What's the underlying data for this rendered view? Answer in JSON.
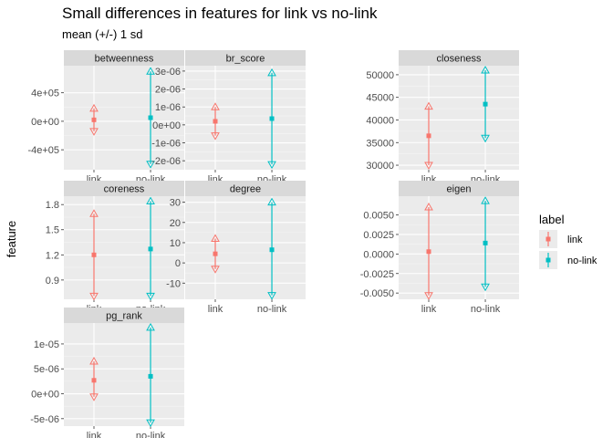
{
  "title": "Small differences in features for link vs no-link",
  "subtitle": "mean (+/-) 1 sd",
  "colors": {
    "panel_bg": "#ebebeb",
    "strip_bg": "#d9d9d9",
    "grid_major": "#ffffff",
    "link": "#F8766D",
    "no-link": "#00BFC4"
  },
  "chart_data": {
    "type": "errorbar",
    "facet_by": "feature",
    "x_categories": [
      "link",
      "no-link"
    ],
    "ylabel": "feature",
    "legend": {
      "title": "label",
      "entries": [
        "link",
        "no-link"
      ],
      "position": "right"
    },
    "grid": true,
    "panels": [
      {
        "name": "betweenness",
        "ylim": [
          -680000,
          780000
        ],
        "ticks": [
          -400000,
          0,
          400000
        ],
        "tick_labels": [
          "-4e+05",
          "0e+00",
          "4e+05"
        ],
        "series": [
          {
            "label": "link",
            "mean": 20000,
            "lower": -140000,
            "upper": 180000
          },
          {
            "label": "no-link",
            "mean": 50000,
            "upper": 700000,
            "lower": -600000
          }
        ]
      },
      {
        "name": "br_score",
        "ylim": [
          -2.5e-06,
          3.3e-06
        ],
        "ticks": [
          -2e-06,
          -1e-06,
          0,
          1e-06,
          2e-06,
          3e-06
        ],
        "tick_labels": [
          "-2e-06",
          "-1e-06",
          "0e+00",
          "1e-06",
          "2e-06",
          "3e-06"
        ],
        "series": [
          {
            "label": "link",
            "mean": 2e-07,
            "lower": -6e-07,
            "upper": 1e-06
          },
          {
            "label": "no-link",
            "mean": 3.5e-07,
            "upper": 2.9e-06,
            "lower": -2.2e-06
          }
        ]
      },
      {
        "name": "closeness",
        "ylim": [
          29000,
          52000
        ],
        "ticks": [
          30000,
          35000,
          40000,
          45000,
          50000
        ],
        "tick_labels": [
          "30000",
          "35000",
          "40000",
          "45000",
          "50000"
        ],
        "series": [
          {
            "label": "link",
            "mean": 36500,
            "lower": 30000,
            "upper": 43000
          },
          {
            "label": "no-link",
            "mean": 43500,
            "upper": 51000,
            "lower": 36000
          }
        ]
      },
      {
        "name": "coreness",
        "ylim": [
          0.67,
          1.9
        ],
        "ticks": [
          0.9,
          1.2,
          1.5,
          1.8
        ],
        "tick_labels": [
          "0.9",
          "1.2",
          "1.5",
          "1.8"
        ],
        "series": [
          {
            "label": "link",
            "mean": 1.2,
            "lower": 0.71,
            "upper": 1.69
          },
          {
            "label": "no-link",
            "mean": 1.27,
            "upper": 1.84,
            "lower": 0.71
          }
        ]
      },
      {
        "name": "degree",
        "ylim": [
          -18,
          33
        ],
        "ticks": [
          -10,
          0,
          10,
          20,
          30
        ],
        "tick_labels": [
          "-10",
          "0",
          "10",
          "20",
          "30"
        ],
        "series": [
          {
            "label": "link",
            "mean": 4.5,
            "lower": -3,
            "upper": 12
          },
          {
            "label": "no-link",
            "mean": 6.5,
            "upper": 30,
            "lower": -16
          }
        ]
      },
      {
        "name": "eigen",
        "ylim": [
          -0.0058,
          0.0074
        ],
        "ticks": [
          -0.005,
          -0.0025,
          0,
          0.0025,
          0.005
        ],
        "tick_labels": [
          "-0.0050",
          "-0.0025",
          "0.0000",
          "0.0025",
          "0.0050"
        ],
        "series": [
          {
            "label": "link",
            "mean": 0.0003,
            "lower": -0.0053,
            "upper": 0.006
          },
          {
            "label": "no-link",
            "mean": 0.0014,
            "upper": 0.0068,
            "lower": -0.0042
          }
        ]
      },
      {
        "name": "pg_rank",
        "ylim": [
          -6.5e-06,
          1.42e-05
        ],
        "ticks": [
          -5e-06,
          0,
          5e-06,
          1e-05
        ],
        "tick_labels": [
          "-5e-06",
          "0e+00",
          "5e-06",
          "1e-05"
        ],
        "series": [
          {
            "label": "link",
            "mean": 2.7e-06,
            "lower": -6e-07,
            "upper": 6.5e-06
          },
          {
            "label": "no-link",
            "mean": 3.5e-06,
            "upper": 1.33e-05,
            "lower": -5.8e-06
          }
        ]
      }
    ]
  }
}
